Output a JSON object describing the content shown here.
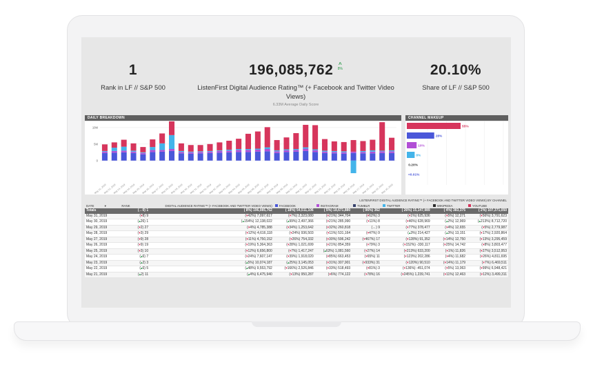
{
  "kpis": {
    "rank": {
      "value": "1",
      "label": "Rank in LF // S&P 500"
    },
    "rating": {
      "value": "196,085,762",
      "trend": "8%",
      "label": "ListenFirst Digital Audience Rating™ (+ Facebook and Twitter Video Views)",
      "sub": "6.33M Average Daily Score"
    },
    "share": {
      "value": "20.10%",
      "label": "Share of LF // S&P 500"
    }
  },
  "panels": {
    "daily": "DAILY BREAKDOWN",
    "channel": "CHANNEL MAKEUP"
  },
  "colors": {
    "facebook": "#4a57d9",
    "instagram": "#b24fd6",
    "tumblr": "#35406b",
    "twitter": "#43b4ea",
    "wikipedia": "#2a2a2a",
    "youtube": "#d6355c"
  },
  "chart_data": [
    {
      "type": "bar",
      "title": "DAILY BREAKDOWN",
      "stacked": true,
      "y_ticks": [
        "10M",
        "5M",
        "0"
      ],
      "ylim": [
        -4000000,
        11000000
      ],
      "categories": [
        "May 01, 2019",
        "May 02, 2019",
        "May 03, 2019",
        "May 04, 2019",
        "May 05, 2019",
        "May 06, 2019",
        "May 07, 2019",
        "May 08, 2019",
        "May 09, 2019",
        "May 10, 2019",
        "May 11, 2019",
        "May 12, 2019",
        "May 13, 2019",
        "May 14, 2019",
        "May 15, 2019",
        "May 16, 2019",
        "May 17, 2019",
        "May 18, 2019",
        "May 19, 2019",
        "May 20, 2019",
        "May 21, 2019",
        "May 22, 2019",
        "May 23, 2019",
        "May 24, 2019",
        "May 25, 2019",
        "May 26, 2019",
        "May 27, 2019",
        "May 28, 2019",
        "May 29, 2019",
        "May 30, 2019",
        "May 31, 2019"
      ],
      "series": [
        {
          "name": "Facebook",
          "color": "#4a57d9",
          "values": [
            2300000,
            2400000,
            2500000,
            2300000,
            1900000,
            2600000,
            2700000,
            2900000,
            2200000,
            2100000,
            2200000,
            2300000,
            2400000,
            2500000,
            2600000,
            2600000,
            2700000,
            2800000,
            2300000,
            2600000,
            2700000,
            2900000,
            2600000,
            2300000,
            2200000,
            2100000,
            2300000,
            2200000,
            2200000,
            2300000,
            2300000
          ]
        },
        {
          "name": "Instagram",
          "color": "#b24fd6",
          "values": [
            400000,
            500000,
            500000,
            400000,
            400000,
            600000,
            500000,
            600000,
            400000,
            400000,
            400000,
            400000,
            500000,
            500000,
            600000,
            600000,
            600000,
            700000,
            500000,
            500000,
            500000,
            700000,
            500000,
            400000,
            400000,
            400000,
            400000,
            400000,
            500000,
            500000,
            500000
          ]
        },
        {
          "name": "Twitter",
          "color": "#43b4ea",
          "values": [
            200000,
            1000000,
            1200000,
            300000,
            200000,
            900000,
            2000000,
            4200000,
            300000,
            200000,
            200000,
            200000,
            200000,
            300000,
            300000,
            300000,
            300000,
            500000,
            300000,
            300000,
            300000,
            400000,
            300000,
            300000,
            300000,
            300000,
            -3800000,
            300000,
            400000,
            200000,
            300000
          ]
        },
        {
          "name": "YouTube",
          "color": "#d6355c",
          "values": [
            2000000,
            1600000,
            2100000,
            2200000,
            1600000,
            2300000,
            3000000,
            4700000,
            2300000,
            2000000,
            1900000,
            2100000,
            2400000,
            2700000,
            3100000,
            4600000,
            5200000,
            6100000,
            3100000,
            3600000,
            4800000,
            6800000,
            7300000,
            3500000,
            2900000,
            2800000,
            3500000,
            3000000,
            3200000,
            8600000,
            3800000
          ]
        }
      ],
      "x_labels_shown": [
        "May 21, 2019",
        "May 22, 2019",
        "May 23, 2019",
        "May 24, 2019",
        "May 25, 2019",
        "May 26, 2019",
        "May 27, 2019",
        "May 28, 2019",
        "May 29, 2019",
        "May 30, 2019",
        "May 31, 2019",
        "May 01, 2019",
        "May 02, 2019",
        "May 03, 2019",
        "May 04, 2019",
        "May 05, 2019",
        "May 06, 2019",
        "May 07, 2019",
        "May 08, 2019",
        "May 09, 2019",
        "May 10, 2019",
        "May 11, 2019",
        "May 12, 2019",
        "May 13, 2019",
        "May 14, 2019",
        "May 15, 2019",
        "May 16, 2019",
        "May 17, 2019",
        "May 18, 2019",
        "May 19, 2019",
        "May 20, 2019"
      ]
    },
    {
      "type": "bar",
      "orientation": "horizontal",
      "title": "CHANNEL MAKEUP",
      "categories": [
        "YouTube",
        "Facebook",
        "Instagram",
        "Twitter",
        "Tumblr",
        "Wikipedia"
      ],
      "values": [
        55,
        28,
        10,
        8,
        0.2,
        -0.01
      ],
      "labels": [
        "55%",
        "28%",
        "10%",
        "8%",
        "0.20%",
        "<0.01%"
      ],
      "colors": [
        "#d6355c",
        "#4a57d9",
        "#b24fd6",
        "#43b4ea",
        "#35406b",
        "#2a2a2a"
      ]
    }
  ],
  "table": {
    "super_header": "LISTENFIRST DIGITAL AUDIENCE RATING™ (+ FACEBOOK AND TWITTER VIDEO VIEWS) BY CHANNEL",
    "columns": [
      "DATE",
      "RANK",
      "DIGITAL AUDIENCE RATING™ (+ FACEBOOK AND TWITTER VIDEO VIEWS)",
      "FACEBOOK",
      "INSTAGRAM",
      "TUMBLR",
      "TWITTER",
      "WIKIPEDIA",
      "YOUTUBE"
    ],
    "sort_icon": "▾",
    "totals": [
      "Totals",
      "(↔0) 1",
      "( 8%) 196,085,762",
      "( 18%) 54,511,106",
      "( 5%) 18,671,880",
      "( 96%) 362",
      "( 26%) 15,147,989",
      "( 4%) 383,375",
      "( 2%) 107,371,050"
    ],
    "rows": [
      [
        "May 31, 2019",
        "(▾8) 9",
        "(▾42%) 7,097,617",
        "(▾7%) 2,323,080",
        "(▾21%) 344,704",
        "(▾62%) 3",
        "(▾1%) 625,936",
        "(▾5%) 12,271",
        "(▾56%) 3,791,623"
      ],
      [
        "May 30, 2019",
        "(▴26) 1",
        "(▴154%) 12,138,022",
        "(▴99%) 2,497,366",
        "(▾21%) 285,990",
        "(▾11%) 8",
        "(▾46%) 628,969",
        "(▴2%) 12,969",
        "(▴213%) 8,712,720"
      ],
      [
        "May 29, 2019",
        "(▾2) 27",
        "(▾4%) 4,785,388",
        "(▾34%) 1,253,642",
        "(▾32%) 260,818",
        "(↔) 9",
        "(▾77%) 378,477",
        "(▾4%) 12,655",
        "(▾5%) 2,779,987"
      ],
      [
        "May 28, 2019",
        "(▾3) 29",
        "(▾12%) 4,616,118",
        "(▾24%) 936,503",
        "(▾11%) 531,164",
        "(▾47%) 9",
        "(▴3%) 214,427",
        "(▴3%) 13,151",
        "(▾17%) 2,920,864"
      ],
      [
        "May 27, 2019",
        "(▾9) 28",
        "(▾11%) 4,750,152",
        "(▾26%) 754,332",
        "(▾30%) 596,242",
        "(▾467%) 17",
        "(▾128%) 91,352",
        "(▾14%) 12,750",
        "(▾13%) 3,295,459"
      ],
      [
        "May 26, 2019",
        "(▾9) 19",
        "(▾19%) 5,364,363",
        "(▾28%) 1,021,699",
        "(▾21%) 854,359",
        "(▾79%) 3",
        "(▾152%) -330,117",
        "(▾25%) 14,742",
        "(▾8%) 3,803,477"
      ],
      [
        "May 25, 2019",
        "(▾3) 10",
        "(▾12%) 6,656,800",
        "(▾7%) 1,417,247",
        "(▴63%) 1,081,560",
        "(▾27%) 14",
        "(▾213%) 633,200",
        "(▾1%) 11,826",
        "(▾27%) 3,512,953"
      ],
      [
        "May 24, 2019",
        "(▴6) 7",
        "(▾24%) 7,607,147",
        "(▾39%) 1,918,020",
        "(▾85%) 663,453",
        "(▾65%) 11",
        "(▾123%) 202,286",
        "(▾4%) 11,682",
        "(▾26%) 4,811,695"
      ],
      [
        "May 23, 2019",
        "(▴2) 3",
        "(▴5%) 10,074,187",
        "(▴25%) 3,145,053",
        "(▾31%) 307,901",
        "(▾933%) 31",
        "(▾120%) 90,510",
        "(▾14%) 11,179",
        "(▾7%) 6,469,511"
      ],
      [
        "May 22, 2019",
        "(▴6) 5",
        "(▴48%) 9,553,792",
        "(▾166%) 2,526,846",
        "(▾33%) 518,493",
        "(▾81%) 3",
        "(▾136%) -451,074",
        "(▾5%) 13,063",
        "(▾99%) 6,948,421"
      ],
      [
        "May 21, 2019",
        "(▴2) 11",
        "(▴4%) 6,475,940",
        "(▾13%) 950,287",
        "(▾6%) 774,122",
        "(▾78%) 16",
        "(▾245%) 1,239,741",
        "(▾11%) 12,463",
        "(▾12%) 3,499,311"
      ]
    ]
  }
}
